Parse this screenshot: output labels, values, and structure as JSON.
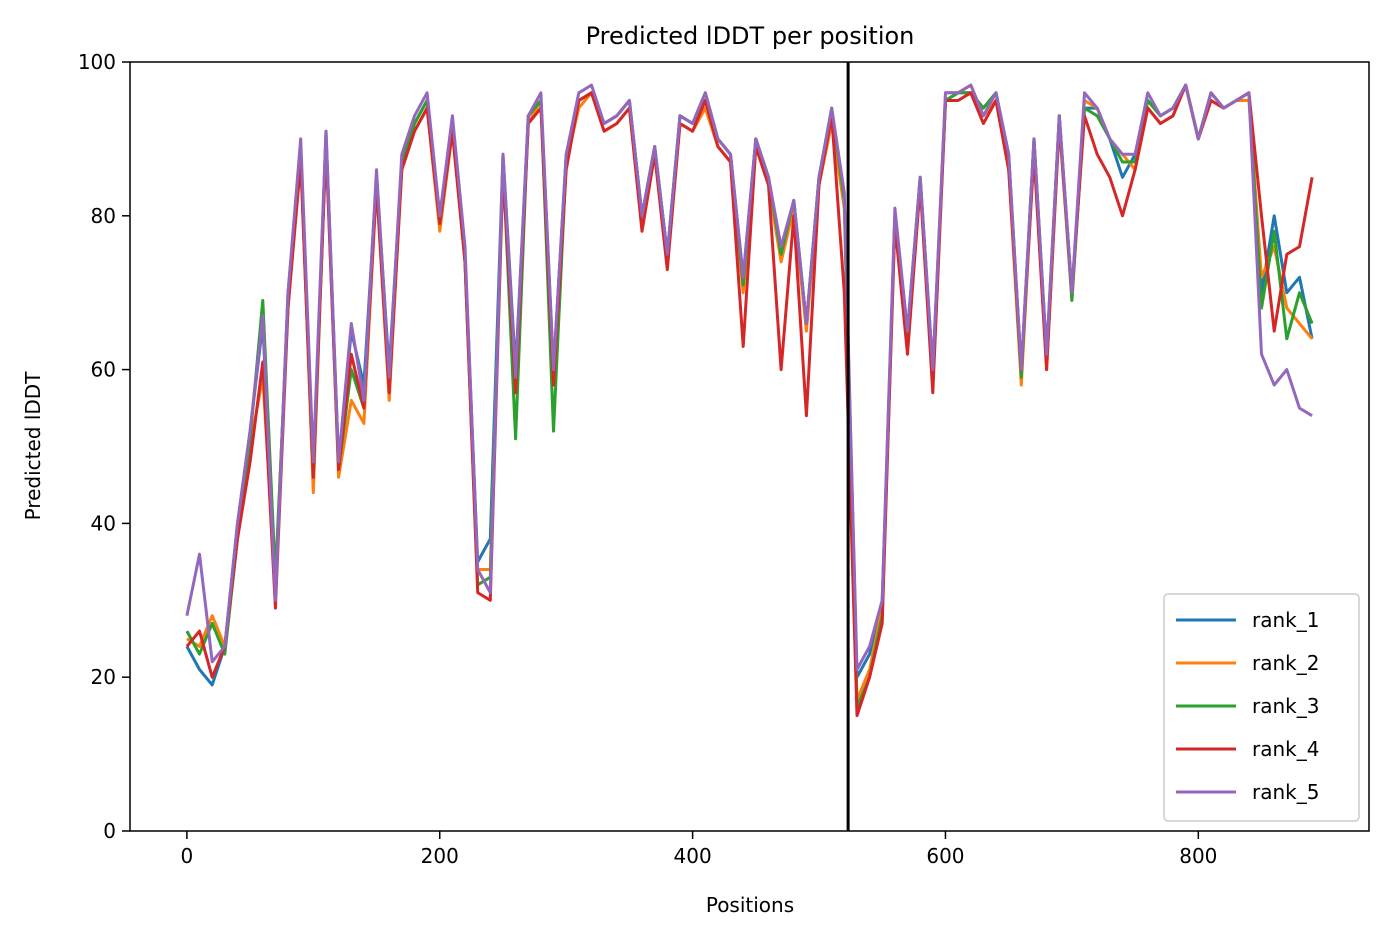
{
  "chart_data": {
    "type": "line",
    "title": "Predicted lDDT per position",
    "xlabel": "Positions",
    "ylabel": "Predicted lDDT",
    "xlim": [
      -45,
      935
    ],
    "ylim": [
      0,
      100
    ],
    "xticks": [
      0,
      200,
      400,
      600,
      800
    ],
    "yticks": [
      0,
      20,
      40,
      60,
      80,
      100
    ],
    "grid": false,
    "legend_position": "lower-right",
    "vertical_line_x": 523,
    "x": [
      0,
      10,
      20,
      30,
      40,
      50,
      60,
      70,
      80,
      90,
      100,
      110,
      120,
      130,
      140,
      150,
      160,
      170,
      180,
      190,
      200,
      210,
      220,
      230,
      240,
      250,
      260,
      270,
      280,
      290,
      300,
      310,
      320,
      330,
      340,
      350,
      360,
      370,
      380,
      390,
      400,
      410,
      420,
      430,
      440,
      450,
      460,
      470,
      480,
      490,
      500,
      510,
      520,
      530,
      540,
      550,
      560,
      570,
      580,
      590,
      600,
      610,
      620,
      630,
      640,
      650,
      660,
      670,
      680,
      690,
      700,
      710,
      720,
      730,
      740,
      750,
      760,
      770,
      780,
      790,
      800,
      810,
      820,
      830,
      840,
      850,
      860,
      870,
      880,
      890
    ],
    "series": [
      {
        "name": "rank_1",
        "color": "#1f77b4",
        "values": [
          24,
          21,
          19,
          24,
          40,
          52,
          66,
          31,
          70,
          88,
          45,
          91,
          48,
          65,
          58,
          85,
          60,
          87,
          92,
          95,
          80,
          92,
          75,
          35,
          38,
          88,
          60,
          93,
          95,
          60,
          88,
          95,
          96,
          92,
          93,
          95,
          80,
          89,
          75,
          93,
          92,
          95,
          90,
          88,
          72,
          90,
          85,
          75,
          82,
          66,
          85,
          93,
          82,
          20,
          23,
          30,
          80,
          65,
          85,
          60,
          95,
          96,
          96,
          94,
          96,
          88,
          60,
          90,
          62,
          93,
          70,
          94,
          94,
          90,
          85,
          88,
          95,
          93,
          94,
          97,
          90,
          96,
          94,
          95,
          96,
          70,
          80,
          70,
          72,
          64
        ]
      },
      {
        "name": "rank_2",
        "color": "#ff7f0e",
        "values": [
          25,
          24,
          28,
          24,
          39,
          50,
          59,
          32,
          69,
          88,
          44,
          90,
          46,
          56,
          53,
          84,
          56,
          86,
          91,
          94,
          78,
          91,
          74,
          34,
          34,
          86,
          59,
          92,
          95,
          59,
          87,
          94,
          96,
          91,
          92,
          94,
          79,
          88,
          74,
          92,
          91,
          94,
          89,
          87,
          70,
          89,
          84,
          74,
          81,
          65,
          84,
          92,
          81,
          17,
          21,
          29,
          79,
          64,
          84,
          59,
          96,
          96,
          97,
          93,
          95,
          86,
          58,
          89,
          60,
          92,
          69,
          95,
          94,
          90,
          88,
          86,
          94,
          92,
          93,
          97,
          90,
          95,
          94,
          95,
          95,
          72,
          76,
          68,
          66,
          64
        ]
      },
      {
        "name": "rank_3",
        "color": "#2ca02c",
        "values": [
          26,
          23,
          27,
          23,
          38,
          51,
          69,
          33,
          68,
          89,
          46,
          90,
          47,
          60,
          55,
          85,
          58,
          87,
          92,
          95,
          79,
          92,
          74,
          32,
          33,
          87,
          51,
          93,
          95,
          52,
          87,
          95,
          96,
          92,
          93,
          95,
          80,
          89,
          75,
          93,
          92,
          96,
          90,
          88,
          71,
          90,
          85,
          75,
          82,
          66,
          85,
          94,
          82,
          16,
          20,
          28,
          80,
          64,
          85,
          59,
          95,
          96,
          96,
          94,
          96,
          87,
          59,
          90,
          61,
          93,
          69,
          94,
          93,
          90,
          87,
          87,
          95,
          93,
          94,
          97,
          90,
          96,
          94,
          95,
          96,
          68,
          78,
          64,
          70,
          66
        ]
      },
      {
        "name": "rank_4",
        "color": "#d62728",
        "values": [
          24,
          26,
          20,
          24,
          38,
          48,
          61,
          29,
          68,
          87,
          46,
          89,
          47,
          62,
          55,
          84,
          57,
          86,
          91,
          94,
          79,
          91,
          74,
          31,
          30,
          86,
          57,
          92,
          94,
          58,
          86,
          95,
          96,
          91,
          92,
          94,
          78,
          88,
          73,
          92,
          91,
          95,
          89,
          87,
          63,
          89,
          84,
          60,
          80,
          54,
          84,
          93,
          70,
          15,
          20,
          27,
          79,
          62,
          84,
          57,
          95,
          95,
          96,
          92,
          95,
          86,
          60,
          88,
          60,
          92,
          70,
          93,
          88,
          85,
          80,
          86,
          94,
          92,
          93,
          97,
          90,
          95,
          94,
          95,
          96,
          80,
          65,
          75,
          76,
          85
        ]
      },
      {
        "name": "rank_5",
        "color": "#9467bd",
        "values": [
          28,
          36,
          22,
          24,
          40,
          52,
          67,
          30,
          70,
          90,
          48,
          91,
          48,
          66,
          56,
          86,
          59,
          88,
          93,
          96,
          80,
          93,
          76,
          34,
          31,
          88,
          59,
          93,
          96,
          60,
          88,
          96,
          97,
          92,
          93,
          95,
          80,
          89,
          75,
          93,
          92,
          96,
          90,
          88,
          72,
          90,
          85,
          76,
          82,
          66,
          85,
          94,
          83,
          21,
          24,
          30,
          81,
          65,
          85,
          60,
          96,
          96,
          97,
          93,
          96,
          88,
          60,
          90,
          62,
          93,
          70,
          96,
          94,
          90,
          88,
          88,
          96,
          93,
          94,
          97,
          90,
          96,
          94,
          95,
          96,
          62,
          58,
          60,
          55,
          54
        ]
      }
    ]
  }
}
